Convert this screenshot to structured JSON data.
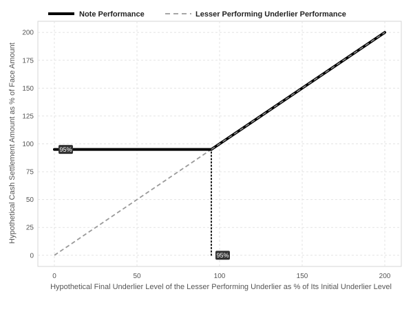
{
  "chart_data": {
    "type": "line",
    "title": "",
    "xlabel": "Hypothetical Final Underlier Level of the Lesser Performing Underlier as % of Its Initial Underlier Level",
    "ylabel": "Hypothetical Cash Settlement Amount as % of Face Amount",
    "xlim": [
      -10,
      210
    ],
    "ylim": [
      -10,
      210
    ],
    "x_ticks": [
      0,
      50,
      100,
      150,
      200
    ],
    "y_ticks": [
      0,
      25,
      50,
      75,
      100,
      125,
      150,
      175,
      200
    ],
    "grid": true,
    "legend_position": "top",
    "series": [
      {
        "name": "Note Performance",
        "style": "solid",
        "color": "#000000",
        "x": [
          0,
          95,
          200
        ],
        "y": [
          95,
          95,
          200
        ]
      },
      {
        "name": "Lesser Performing Underlier Performance",
        "style": "dashed",
        "color": "#999999",
        "x": [
          0,
          200
        ],
        "y": [
          0,
          200
        ]
      }
    ],
    "annotations": [
      {
        "text": "95%",
        "x": 0,
        "y": 95,
        "placement": "right"
      },
      {
        "text": "95%",
        "x": 95,
        "y": 0,
        "placement": "right"
      }
    ],
    "reference_lines": [
      {
        "style": "dotted",
        "x": [
          95,
          95
        ],
        "y": [
          0,
          95
        ]
      }
    ]
  }
}
